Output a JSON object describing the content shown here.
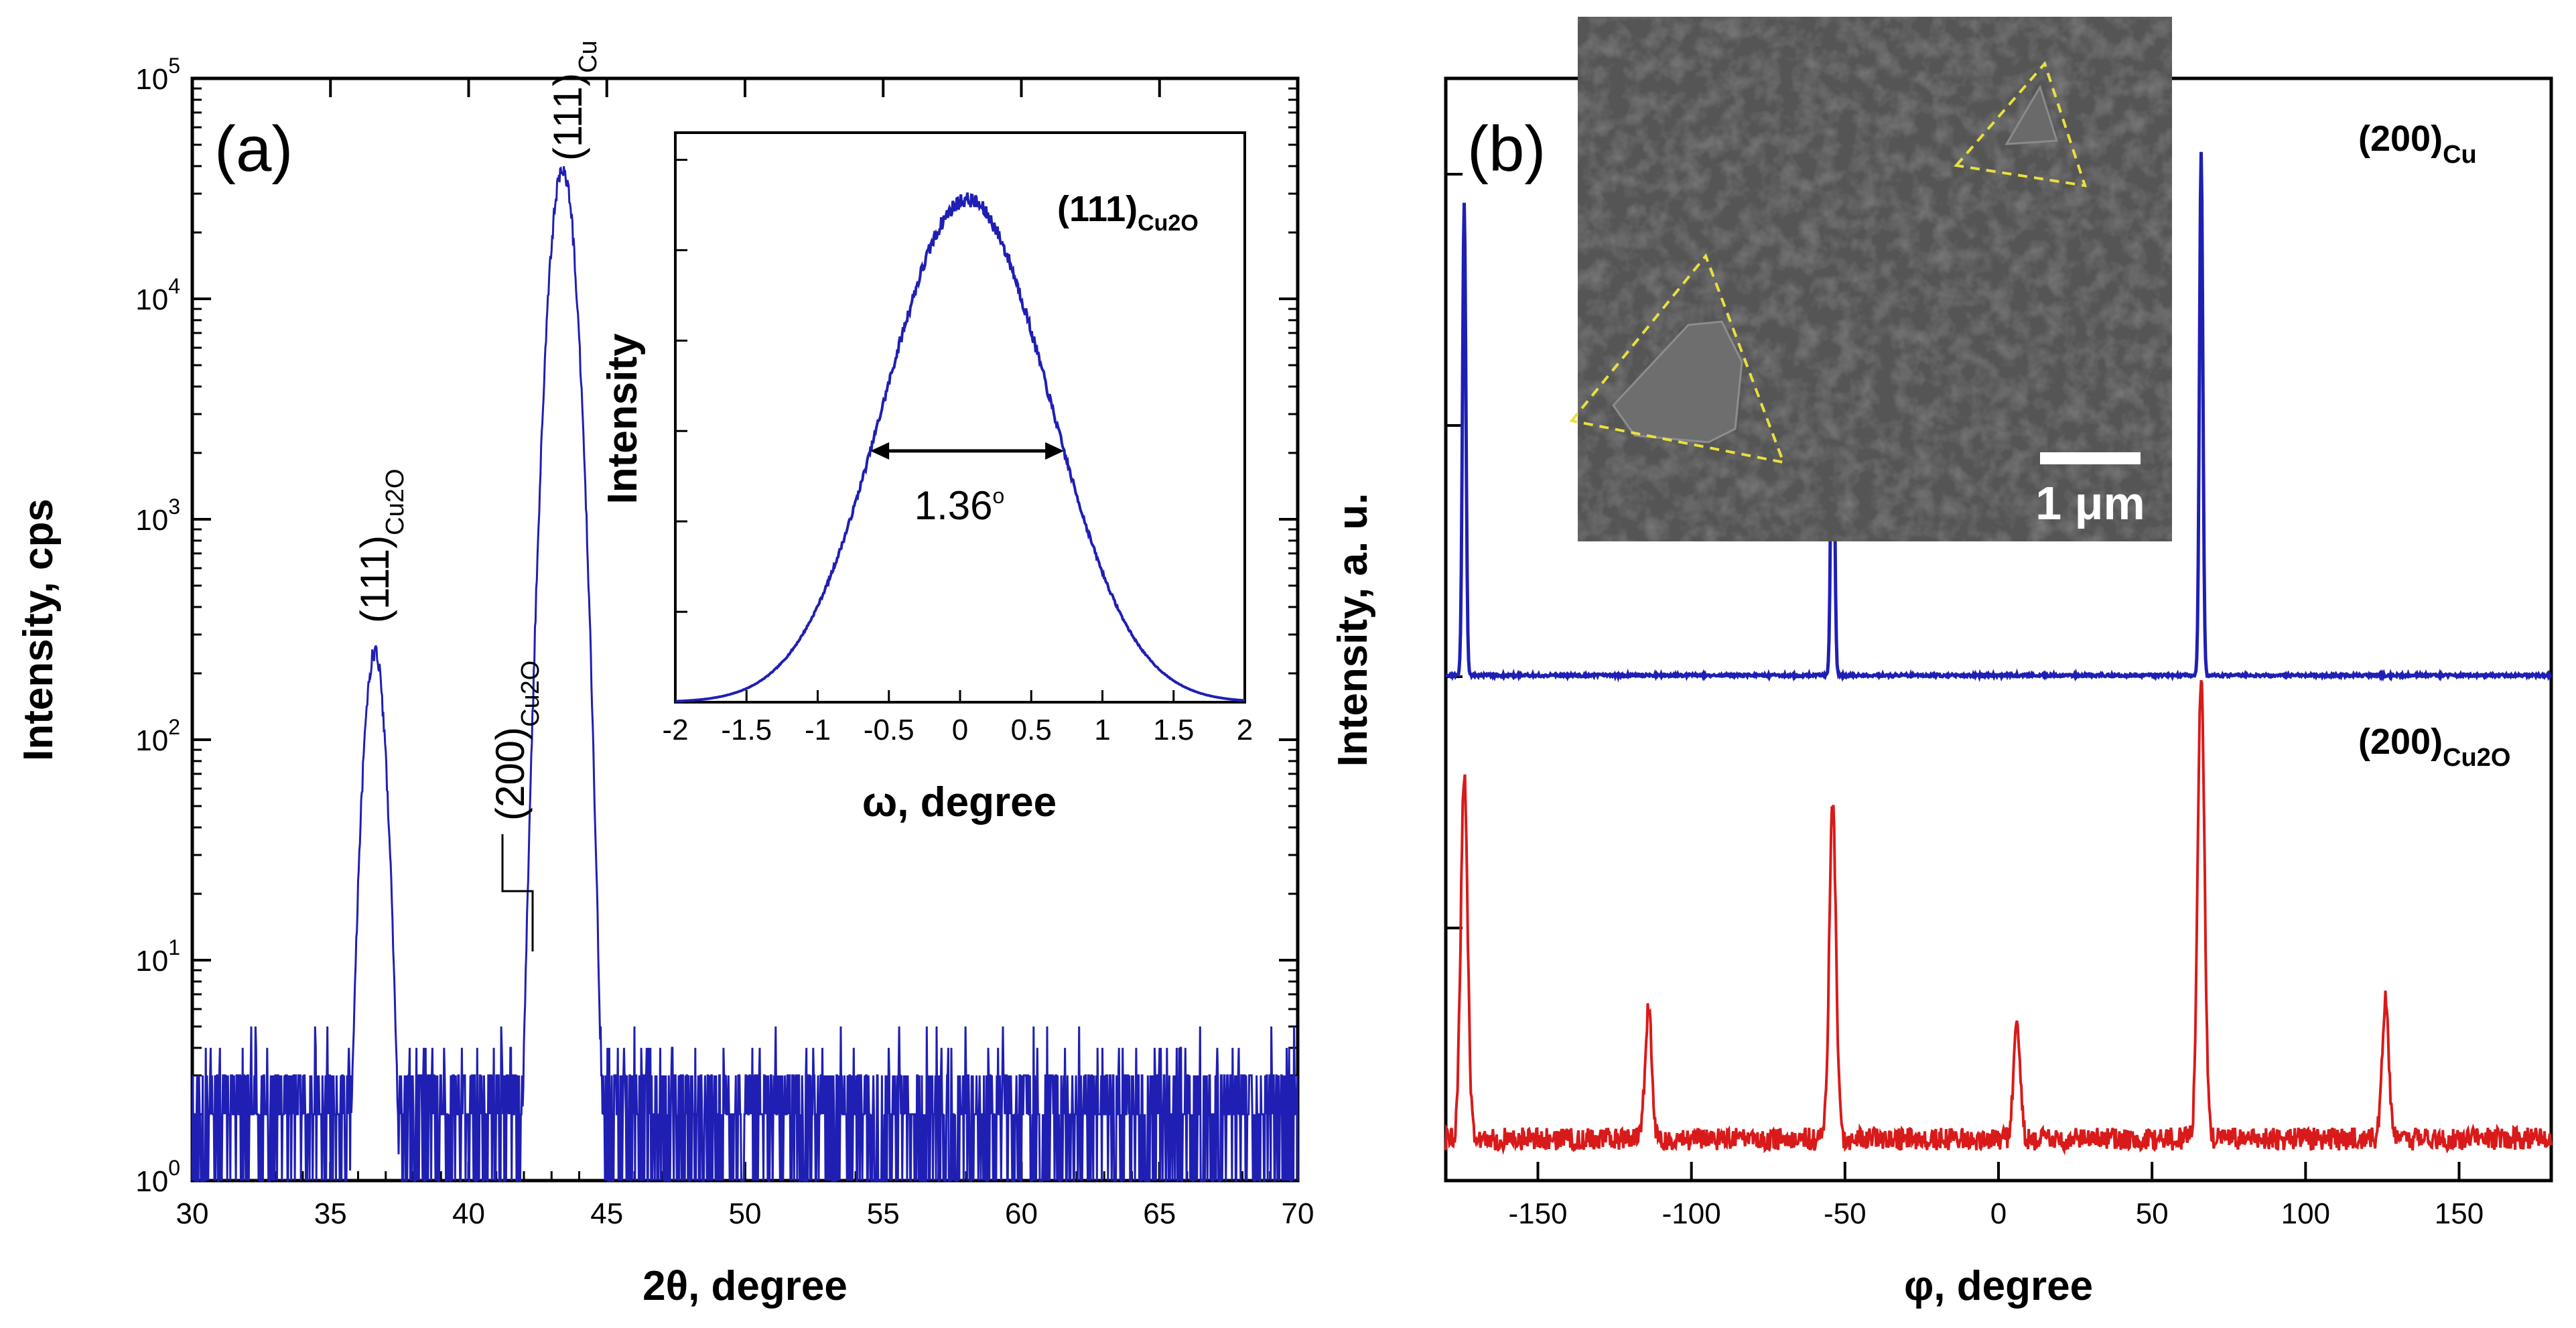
{
  "colors": {
    "blue": "#1f1fb4",
    "red": "#d91a1a",
    "axis": "#000000",
    "sem_bg": "#505050"
  },
  "chart_data": [
    {
      "id": "a",
      "panel_label": "(a)",
      "type": "line",
      "xlabel": "2θ, degree",
      "ylabel": "Intensity, cps",
      "xlim": [
        30,
        70
      ],
      "ylim": [
        1,
        100000
      ],
      "yscale": "log",
      "xticks": [
        "30",
        "35",
        "40",
        "45",
        "50",
        "55",
        "60",
        "65",
        "70"
      ],
      "yticks": [
        {
          "base": "10",
          "exp": "0"
        },
        {
          "base": "10",
          "exp": "1"
        },
        {
          "base": "10",
          "exp": "2"
        },
        {
          "base": "10",
          "exp": "3"
        },
        {
          "base": "10",
          "exp": "4"
        },
        {
          "base": "10",
          "exp": "5"
        }
      ],
      "background_cps": [
        1,
        2,
        3
      ],
      "peaks": [
        {
          "x": 36.6,
          "y": 250
        },
        {
          "x": 42.4,
          "y": 9
        },
        {
          "x": 43.4,
          "y": 38000
        }
      ],
      "annotations": [
        {
          "main": "(111)",
          "sub": "Cu2O",
          "x": 36.6
        },
        {
          "main": "(200)",
          "sub": "Cu2O",
          "x": 42.4
        },
        {
          "main": "(111)",
          "sub": "Cu",
          "x": 43.4
        }
      ]
    },
    {
      "id": "a_inset",
      "type": "line",
      "title_main": "(111)",
      "title_sub": "Cu2O",
      "xlabel": "ω, degree",
      "ylabel": "Intensity",
      "xlim": [
        -2,
        2
      ],
      "xticks": [
        "-2",
        "-1.5",
        "-1",
        "-0.5",
        "0",
        "0.5",
        "1",
        "1.5",
        "2"
      ],
      "peak_center": 0.05,
      "fwhm": 1.36,
      "fwhm_label": "1.36",
      "fwhm_degree_symbol": "o"
    },
    {
      "id": "b",
      "panel_label": "(b)",
      "type": "line",
      "xlabel": "φ, degree",
      "ylabel": "Intensity, a. u.",
      "xlim": [
        -180,
        180
      ],
      "xticks": [
        "-150",
        "-100",
        "-50",
        "0",
        "50",
        "100",
        "150"
      ],
      "series": [
        {
          "name": "(200)Cu",
          "label_main": "(200)",
          "label_sub": "Cu",
          "peaks": [
            {
              "x": -174,
              "h": 0.75
            },
            {
              "x": -54,
              "h": 0.6
            },
            {
              "x": 66,
              "h": 0.83
            }
          ]
        },
        {
          "name": "(200)Cu2O",
          "label_main": "(200)",
          "label_sub": "Cu2O",
          "peaks": [
            {
              "x": -174,
              "h": 0.79
            },
            {
              "x": -114,
              "h": 0.28
            },
            {
              "x": -54,
              "h": 0.72
            },
            {
              "x": 6,
              "h": 0.24
            },
            {
              "x": 66,
              "h": 1.0
            },
            {
              "x": 126,
              "h": 0.3
            }
          ]
        }
      ]
    }
  ],
  "sem_inset": {
    "scale_bar_label": "1 μm"
  }
}
